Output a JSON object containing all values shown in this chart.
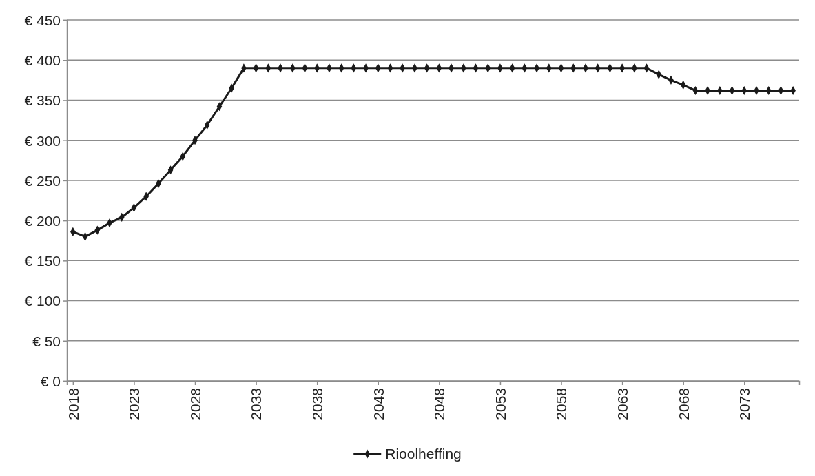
{
  "chart_data": {
    "type": "line",
    "categories": [
      "2018",
      null,
      null,
      null,
      null,
      "2023",
      null,
      null,
      null,
      null,
      "2028",
      null,
      null,
      null,
      null,
      "2033",
      null,
      null,
      null,
      null,
      "2038",
      null,
      null,
      null,
      null,
      "2043",
      null,
      null,
      null,
      null,
      "2048",
      null,
      null,
      null,
      null,
      "2053",
      null,
      null,
      null,
      null,
      "2058",
      null,
      null,
      null,
      null,
      "2063",
      null,
      null,
      null,
      null,
      "2068",
      null,
      null,
      null,
      null,
      "2073",
      null,
      null,
      null,
      null
    ],
    "series": [
      {
        "name": "Rioolheffing",
        "color": "#1a1a1a",
        "values": [
          186,
          180,
          188,
          197,
          204,
          216,
          230,
          246,
          263,
          280,
          300,
          319,
          342,
          365,
          390,
          390,
          390,
          390,
          390,
          390,
          390,
          390,
          390,
          390,
          390,
          390,
          390,
          390,
          390,
          390,
          390,
          390,
          390,
          390,
          390,
          390,
          390,
          390,
          390,
          390,
          390,
          390,
          390,
          390,
          390,
          390,
          390,
          390,
          382,
          375,
          369,
          362,
          362,
          362,
          362,
          362,
          362,
          362,
          362,
          362
        ]
      }
    ],
    "ylim": [
      0,
      450
    ],
    "yticks": [
      {
        "value": 0,
        "label": "€ 0"
      },
      {
        "value": 50,
        "label": "€ 50"
      },
      {
        "value": 100,
        "label": "€ 100"
      },
      {
        "value": 150,
        "label": "€ 150"
      },
      {
        "value": 200,
        "label": "€ 200"
      },
      {
        "value": 250,
        "label": "€ 250"
      },
      {
        "value": 300,
        "label": "€ 300"
      },
      {
        "value": 350,
        "label": "€ 350"
      },
      {
        "value": 400,
        "label": "€ 400"
      },
      {
        "value": 450,
        "label": "€ 450"
      }
    ],
    "grid": "y",
    "legend": "bottom",
    "marker": "diamond",
    "line_style": "solid"
  }
}
